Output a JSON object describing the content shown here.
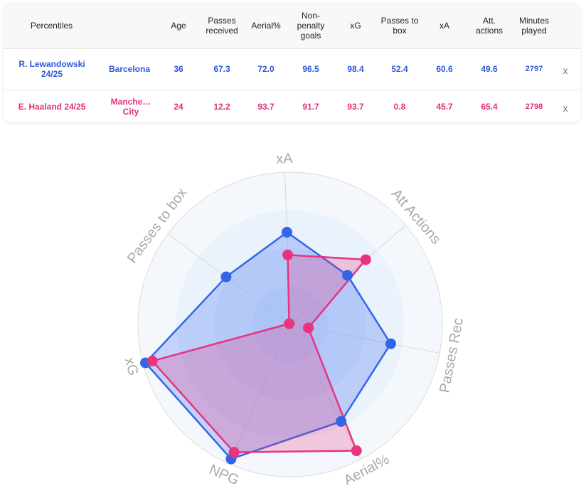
{
  "table": {
    "headers": {
      "percentiles": "Percentiles",
      "age": "Age",
      "passes_received": "Passes received",
      "aerial": "Aerial%",
      "npg": "Non-penalty goals",
      "xg": "xG",
      "passes_to_box": "Passes to box",
      "xa": "xA",
      "att_actions": "Att. actions",
      "minutes": "Minutes played"
    },
    "rows": [
      {
        "player": "R. Lewandowski 24/25",
        "team": "Barcelona",
        "age": "36",
        "passes_received": "67.3",
        "aerial": "72.0",
        "npg": "96.5",
        "xg": "98.4",
        "passes_to_box": "52.4",
        "xa": "60.6",
        "att_actions": "49.6",
        "minutes": "2797",
        "remove": "x"
      },
      {
        "player": "E. Haaland 24/25",
        "team": "Manche… City",
        "age": "24",
        "passes_received": "12.2",
        "aerial": "93.7",
        "npg": "91.7",
        "xg": "93.7",
        "passes_to_box": "0.8",
        "xa": "45.7",
        "att_actions": "65.4",
        "minutes": "2798",
        "remove": "x"
      }
    ]
  },
  "colors": {
    "lewandowski": "#3366e6",
    "haaland": "#e8337f"
  },
  "chart_data": {
    "type": "radar",
    "axes": [
      "xA",
      "Att Actions",
      "Passes Rec",
      "Aerial%",
      "NPG",
      "xG",
      "Passes to box"
    ],
    "range": [
      0,
      100
    ],
    "series": [
      {
        "name": "R. Lewandowski 24/25",
        "values": [
          60.6,
          49.6,
          67.3,
          72.0,
          96.5,
          98.4,
          52.4
        ]
      },
      {
        "name": "E. Haaland 24/25",
        "values": [
          45.7,
          65.4,
          12.2,
          93.7,
          91.7,
          93.7,
          0.8
        ]
      }
    ]
  }
}
